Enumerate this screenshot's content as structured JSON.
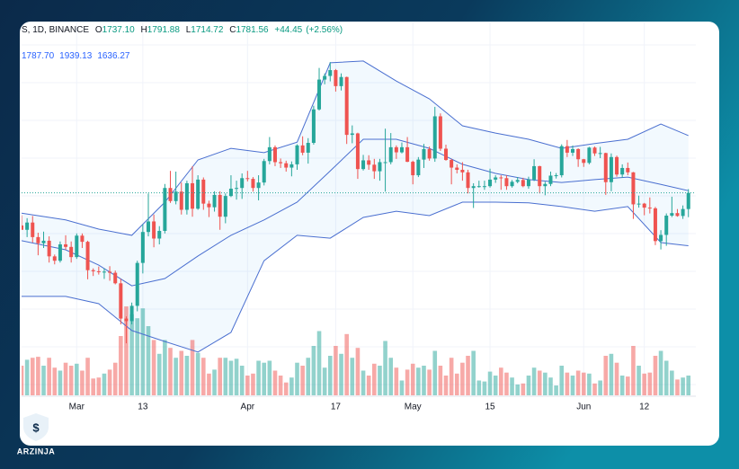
{
  "chart_data": {
    "type": "candlestick",
    "symbol": "S, 1D, BINANCE",
    "ohlc_legend": [
      {
        "key": "O",
        "value": 1737.1,
        "label": "1737.10"
      },
      {
        "key": "H",
        "value": 1791.88,
        "label": "1791.88"
      },
      {
        "key": "L",
        "value": 1714.72,
        "label": "1714.72"
      },
      {
        "key": "C",
        "value": 1781.56,
        "label": "1781.56"
      }
    ],
    "change": {
      "value": 44.45,
      "label": "+44.45"
    },
    "change_pct": {
      "value": 2.56,
      "label": "(+2.56%)"
    },
    "bands_legend": [
      {
        "value": 1787.7,
        "label": "1787.70"
      },
      {
        "value": 1939.13,
        "label": "1939.13"
      },
      {
        "value": 1636.27,
        "label": "1636.27"
      }
    ],
    "logo": "ARZINJA",
    "dates": [
      "Feb 19",
      "Feb 20",
      "Feb 21",
      "Feb 22",
      "Feb 23",
      "Feb 24",
      "Feb 25",
      "Feb 26",
      "Feb 27",
      "Feb 28",
      "Mar 1",
      "Mar 2",
      "Mar 3",
      "Mar 4",
      "Mar 5",
      "Mar 6",
      "Mar 7",
      "Mar 8",
      "Mar 9",
      "Mar 10",
      "Mar 11",
      "Mar 12",
      "Mar 13",
      "Mar 14",
      "Mar 15",
      "Mar 16",
      "Mar 17",
      "Mar 18",
      "Mar 19",
      "Mar 20",
      "Mar 21",
      "Mar 22",
      "Mar 23",
      "Mar 24",
      "Mar 25",
      "Mar 26",
      "Mar 27",
      "Mar 28",
      "Mar 29",
      "Mar 30",
      "Mar 31",
      "Apr 1",
      "Apr 2",
      "Apr 3",
      "Apr 4",
      "Apr 5",
      "Apr 6",
      "Apr 7",
      "Apr 8",
      "Apr 9",
      "Apr 10",
      "Apr 11",
      "Apr 12",
      "Apr 13",
      "Apr 14",
      "Apr 15",
      "Apr 16",
      "Apr 17",
      "Apr 18",
      "Apr 19",
      "Apr 20",
      "Apr 21",
      "Apr 22",
      "Apr 23",
      "Apr 24",
      "Apr 25",
      "Apr 26",
      "Apr 27",
      "Apr 28",
      "Apr 29",
      "Apr 30",
      "May 1",
      "May 2",
      "May 3",
      "May 4",
      "May 5",
      "May 6",
      "May 7",
      "May 8",
      "May 9",
      "May 10",
      "May 11",
      "May 12",
      "May 13",
      "May 14",
      "May 15",
      "May 16",
      "May 17",
      "May 18",
      "May 19",
      "May 20",
      "May 21",
      "May 22",
      "May 23",
      "May 24",
      "May 25",
      "May 26",
      "May 27",
      "May 28",
      "May 29",
      "May 30",
      "May 31",
      "Jun 1",
      "Jun 2",
      "Jun 3",
      "Jun 4",
      "Jun 5",
      "Jun 6",
      "Jun 7",
      "Jun 8",
      "Jun 9",
      "Jun 10",
      "Jun 11",
      "Jun 12",
      "Jun 13",
      "Jun 14",
      "Jun 15",
      "Jun 16",
      "Jun 17",
      "Jun 18",
      "Jun 19",
      "Jun 20"
    ],
    "open": [
      1692,
      1680,
      1700,
      1660,
      1643,
      1650,
      1607,
      1595,
      1640,
      1633,
      1605,
      1664,
      1647,
      1569,
      1566,
      1564,
      1565,
      1562,
      1533,
      1436,
      1429,
      1471,
      1589,
      1674,
      1703,
      1656,
      1677,
      1795,
      1759,
      1785,
      1735,
      1808,
      1738,
      1818,
      1752,
      1742,
      1776,
      1716,
      1773,
      1793,
      1795,
      1822,
      1820,
      1795,
      1810,
      1869,
      1907,
      1866,
      1863,
      1851,
      1860,
      1912,
      1892,
      1919,
      2011,
      2093,
      2103,
      2119,
      2075,
      2100,
      1941,
      1945,
      1847,
      1871,
      1859,
      1841,
      1866,
      1866,
      1907,
      1893,
      1907,
      1867,
      1830,
      1873,
      1902,
      1876,
      1992,
      1903,
      1872,
      1851,
      1845,
      1838,
      1795,
      1800,
      1800,
      1800,
      1818,
      1824,
      1822,
      1800,
      1812,
      1817,
      1800,
      1818,
      1855,
      1800,
      1806,
      1829,
      1830,
      1910,
      1892,
      1902,
      1874,
      1864,
      1906,
      1890,
      1891,
      1811,
      1880,
      1832,
      1850,
      1838,
      1750,
      1752,
      1741,
      1739,
      1649,
      1666,
      1719,
      1726,
      1718,
      1737.1
    ],
    "high": [
      1720,
      1712,
      1718,
      1672,
      1675,
      1662,
      1612,
      1648,
      1665,
      1648,
      1670,
      1670,
      1650,
      1574,
      1579,
      1574,
      1580,
      1568,
      1545,
      1442,
      1480,
      1595,
      1695,
      1780,
      1722,
      1690,
      1806,
      1842,
      1840,
      1810,
      1815,
      1855,
      1830,
      1824,
      1760,
      1786,
      1786,
      1780,
      1830,
      1815,
      1835,
      1842,
      1825,
      1830,
      1875,
      1935,
      1912,
      1876,
      1870,
      1868,
      1915,
      1937,
      1932,
      2021,
      2125,
      2110,
      2141,
      2122,
      2110,
      2101,
      1967,
      1947,
      1886,
      1885,
      1875,
      1875,
      1958,
      1946,
      1912,
      1920,
      1935,
      1870,
      1880,
      1916,
      1909,
      2018,
      2000,
      1914,
      1875,
      1860,
      1866,
      1845,
      1808,
      1815,
      1815,
      1848,
      1830,
      1830,
      1830,
      1817,
      1825,
      1823,
      1826,
      1874,
      1856,
      1812,
      1840,
      1836,
      1915,
      1927,
      1912,
      1904,
      1875,
      1908,
      1909,
      1908,
      1892,
      1890,
      1884,
      1860,
      1865,
      1839,
      1774,
      1754,
      1769,
      1743,
      1679,
      1725,
      1771,
      1737,
      1747,
      1791.88
    ],
    "low": [
      1680,
      1660,
      1645,
      1610,
      1630,
      1590,
      1585,
      1590,
      1625,
      1590,
      1600,
      1630,
      1544,
      1553,
      1557,
      1545,
      1540,
      1530,
      1420,
      1368,
      1420,
      1456,
      1560,
      1662,
      1632,
      1640,
      1670,
      1754,
      1750,
      1722,
      1722,
      1716,
      1735,
      1735,
      1715,
      1730,
      1680,
      1698,
      1770,
      1763,
      1765,
      1813,
      1785,
      1761,
      1802,
      1860,
      1855,
      1850,
      1840,
      1827,
      1845,
      1885,
      1862,
      1914,
      2008,
      2080,
      2088,
      2060,
      2063,
      1916,
      1918,
      1820,
      1843,
      1845,
      1820,
      1815,
      1785,
      1860,
      1875,
      1890,
      1866,
      1805,
      1825,
      1850,
      1870,
      1867,
      1897,
      1870,
      1805,
      1835,
      1815,
      1780,
      1740,
      1796,
      1790,
      1796,
      1809,
      1790,
      1790,
      1796,
      1808,
      1797,
      1793,
      1814,
      1780,
      1775,
      1800,
      1821,
      1824,
      1880,
      1883,
      1853,
      1853,
      1860,
      1883,
      1877,
      1776,
      1786,
      1826,
      1823,
      1830,
      1710,
      1741,
      1720,
      1725,
      1638,
      1626,
      1636,
      1715,
      1716,
      1710,
      1714.72
    ],
    "close": [
      1680,
      1700,
      1660,
      1643,
      1650,
      1607,
      1595,
      1640,
      1633,
      1605,
      1664,
      1647,
      1569,
      1566,
      1564,
      1565,
      1562,
      1533,
      1436,
      1429,
      1471,
      1589,
      1674,
      1703,
      1656,
      1677,
      1795,
      1759,
      1785,
      1735,
      1808,
      1738,
      1818,
      1752,
      1742,
      1776,
      1716,
      1773,
      1793,
      1795,
      1822,
      1820,
      1795,
      1810,
      1869,
      1907,
      1866,
      1863,
      1851,
      1860,
      1912,
      1892,
      1919,
      2011,
      2093,
      2103,
      2119,
      2075,
      2100,
      1941,
      1945,
      1847,
      1871,
      1859,
      1841,
      1866,
      1866,
      1907,
      1893,
      1907,
      1867,
      1830,
      1873,
      1902,
      1876,
      1992,
      1903,
      1872,
      1851,
      1845,
      1838,
      1795,
      1800,
      1800,
      1800,
      1818,
      1824,
      1822,
      1800,
      1812,
      1817,
      1800,
      1818,
      1855,
      1800,
      1806,
      1829,
      1830,
      1910,
      1892,
      1902,
      1874,
      1864,
      1906,
      1890,
      1891,
      1811,
      1880,
      1832,
      1850,
      1838,
      1750,
      1752,
      1741,
      1739,
      1649,
      1666,
      1719,
      1726,
      1718,
      1737.1,
      1781.56
    ],
    "volume": [
      300,
      360,
      380,
      390,
      300,
      380,
      280,
      250,
      330,
      300,
      320,
      250,
      380,
      170,
      180,
      220,
      260,
      330,
      600,
      900,
      820,
      780,
      880,
      700,
      560,
      420,
      560,
      480,
      380,
      450,
      400,
      560,
      430,
      380,
      220,
      260,
      380,
      380,
      350,
      370,
      300,
      200,
      220,
      350,
      330,
      350,
      250,
      200,
      130,
      180,
      330,
      300,
      380,
      500,
      650,
      280,
      400,
      500,
      420,
      620,
      380,
      480,
      250,
      200,
      320,
      300,
      550,
      380,
      280,
      150,
      260,
      320,
      280,
      300,
      260,
      450,
      300,
      200,
      380,
      220,
      330,
      400,
      450,
      150,
      140,
      240,
      200,
      280,
      230,
      180,
      110,
      120,
      200,
      280,
      250,
      230,
      180,
      100,
      300,
      230,
      200,
      250,
      230,
      220,
      120,
      150,
      400,
      420,
      330,
      200,
      190,
      500,
      300,
      220,
      230,
      400,
      450,
      350,
      250,
      160,
      180,
      200
    ],
    "bands": {
      "x": [
        "Feb 19",
        "Feb 27",
        "Mar 5",
        "Mar 11",
        "Mar 17",
        "Mar 23",
        "Mar 29",
        "Apr 4",
        "Apr 10",
        "Apr 16",
        "Apr 22",
        "Apr 28",
        "May 4",
        "May 10",
        "May 16",
        "May 22",
        "May 28",
        "Jun 3",
        "Jun 9",
        "Jun 15",
        "Jun 20"
      ],
      "upper": [
        1726,
        1707,
        1682,
        1665,
        1756,
        1872,
        1904,
        1892,
        1921,
        2139,
        2144,
        2089,
        2040,
        1966,
        1946,
        1929,
        1904,
        1917,
        1929,
        1971,
        1939.13
      ],
      "middle": [
        1650,
        1625,
        1583,
        1526,
        1546,
        1608,
        1665,
        1707,
        1756,
        1842,
        1929,
        1929,
        1904,
        1860,
        1835,
        1818,
        1810,
        1818,
        1825,
        1805,
        1787.7
      ],
      "lower": [
        1497,
        1497,
        1477,
        1403,
        1373,
        1344,
        1398,
        1595,
        1665,
        1657,
        1714,
        1731,
        1719,
        1756,
        1756,
        1754,
        1744,
        1731,
        1744,
        1645,
        1636.27
      ]
    },
    "xticks": [
      {
        "value": "Mar 1",
        "label": "Mar"
      },
      {
        "value": "Mar 13",
        "label": "13"
      },
      {
        "value": "Apr 1",
        "label": "Apr"
      },
      {
        "value": "Apr 17",
        "label": "17"
      },
      {
        "value": "May 1",
        "label": "May"
      },
      {
        "value": "May 15",
        "label": "15"
      },
      {
        "value": "Jun 1",
        "label": "Jun"
      },
      {
        "value": "Jun 12",
        "label": "12"
      }
    ],
    "ylim": [
      1225,
      2250
    ],
    "volume_ylim": [
      0,
      1000
    ],
    "up_color": "#26a69a",
    "down_color": "#ef5350",
    "band_color": "#4a6fd0",
    "grid": true,
    "last_price_line": true
  }
}
